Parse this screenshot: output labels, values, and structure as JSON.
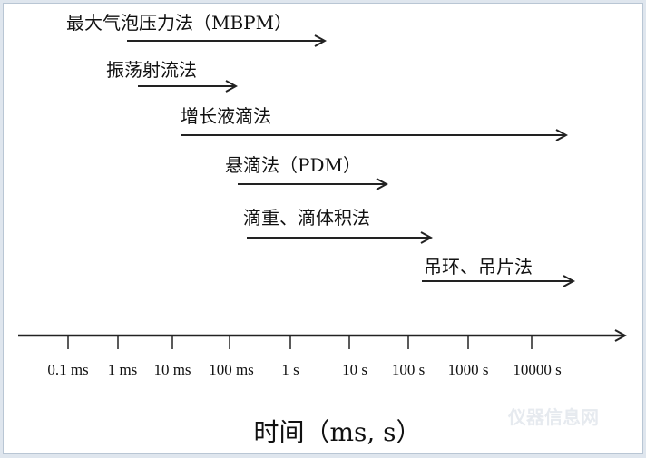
{
  "methods": [
    {
      "label": "最大气泡压力法（MBPM）"
    },
    {
      "label": "振荡射流法"
    },
    {
      "label": "增长液滴法"
    },
    {
      "label": "悬滴法（PDM）"
    },
    {
      "label": "滴重、滴体积法"
    },
    {
      "label": "吊环、吊片法"
    }
  ],
  "axis": {
    "ticks": [
      "0.1 ms",
      "1 ms",
      "10 ms",
      "100 ms",
      "1 s",
      "10 s",
      "100 s",
      "1000 s",
      "10000 s"
    ],
    "title": "时间（ms, s）"
  },
  "watermark": "仪器信息网",
  "colors": {
    "line": "#222222",
    "frame": "#b9c6d4"
  }
}
